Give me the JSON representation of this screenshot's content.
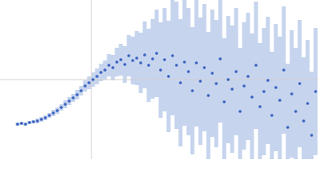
{
  "chart_data": {
    "type": "scatter",
    "xlim": [
      0,
      400
    ],
    "ylim": [
      0,
      200
    ],
    "vline": 115,
    "hline": 100,
    "color": "#3a62c0",
    "error_color": "#b3c6e8",
    "x": [
      22,
      27,
      32,
      37,
      42,
      47,
      52,
      57,
      62,
      67,
      72,
      77,
      82,
      87,
      92,
      97,
      102,
      107,
      112,
      117,
      122,
      127,
      132,
      137,
      142,
      147,
      152,
      157,
      162,
      167,
      172,
      177,
      182,
      187,
      192,
      197,
      202,
      207,
      212,
      217,
      222,
      227,
      232,
      237,
      242,
      247,
      252,
      257,
      262,
      267,
      272,
      277,
      282,
      287,
      292,
      297,
      302,
      307,
      312,
      317,
      322,
      327,
      332,
      337,
      342,
      347,
      352,
      357,
      362,
      367,
      372,
      377,
      382,
      387,
      392,
      397
    ],
    "values": [
      44,
      45,
      44,
      46,
      47,
      48,
      50,
      52,
      55,
      58,
      61,
      65,
      69,
      73,
      77,
      81,
      86,
      92,
      96,
      100,
      104,
      109,
      112,
      118,
      115,
      122,
      125,
      119,
      130,
      124,
      127,
      121,
      131,
      118,
      126,
      133,
      112,
      125,
      104,
      130,
      118,
      96,
      122,
      110,
      86,
      121,
      98,
      115,
      80,
      108,
      95,
      126,
      72,
      100,
      88,
      110,
      60,
      92,
      104,
      78,
      118,
      66,
      85,
      99,
      55,
      90,
      74,
      112,
      40,
      82,
      60,
      95,
      48,
      70,
      30,
      85
    ],
    "errors": [
      2,
      2,
      2,
      2,
      2,
      3,
      3,
      3,
      3,
      4,
      4,
      4,
      5,
      5,
      5,
      6,
      6,
      7,
      8,
      9,
      10,
      11,
      12,
      14,
      16,
      18,
      20,
      23,
      26,
      30,
      34,
      38,
      42,
      46,
      50,
      55,
      60,
      65,
      70,
      75,
      80,
      80,
      80,
      80,
      80,
      80,
      80,
      80,
      80,
      80,
      80,
      80,
      80,
      80,
      80,
      80,
      80,
      80,
      80,
      80,
      80,
      80,
      80,
      80,
      80,
      80,
      80,
      80,
      80,
      80,
      80,
      80,
      80,
      80,
      80,
      80
    ]
  }
}
